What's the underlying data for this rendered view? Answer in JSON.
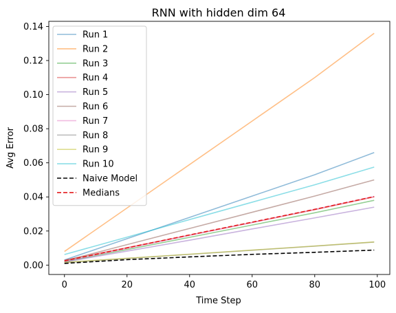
{
  "chart_data": {
    "type": "line",
    "title": "RNN with hidden dim 64",
    "xlabel": "Time Step",
    "ylabel": "Avg Error",
    "xlim": [
      -5,
      104
    ],
    "ylim": [
      -0.0055,
      0.143
    ],
    "xticks": [
      0,
      20,
      40,
      60,
      80,
      100
    ],
    "xtick_labels": [
      "0",
      "20",
      "40",
      "60",
      "80",
      "100"
    ],
    "yticks": [
      0.0,
      0.02,
      0.04,
      0.06,
      0.08,
      0.1,
      0.12,
      0.14
    ],
    "ytick_labels": [
      "0.00",
      "0.02",
      "0.04",
      "0.06",
      "0.08",
      "0.10",
      "0.12",
      "0.14"
    ],
    "grid": false,
    "legend_position": "upper left",
    "x": [
      0,
      20,
      40,
      60,
      80,
      99
    ],
    "series": [
      {
        "name": "Run 1",
        "color": "#1f77b4",
        "alpha": 0.5,
        "dash": "solid",
        "values": [
          0.003,
          0.0155,
          0.028,
          0.0405,
          0.053,
          0.066
        ]
      },
      {
        "name": "Run 2",
        "color": "#ff7f0e",
        "alpha": 0.5,
        "dash": "solid",
        "values": [
          0.008,
          0.0335,
          0.059,
          0.0845,
          0.11,
          0.136
        ]
      },
      {
        "name": "Run 3",
        "color": "#2ca02c",
        "alpha": 0.5,
        "dash": "solid",
        "values": [
          0.002,
          0.0091,
          0.0163,
          0.0235,
          0.0307,
          0.038
        ]
      },
      {
        "name": "Run 4",
        "color": "#d62728",
        "alpha": 0.5,
        "dash": "solid",
        "values": [
          0.0028,
          0.0102,
          0.0176,
          0.025,
          0.0325,
          0.04
        ]
      },
      {
        "name": "Run 5",
        "color": "#9467bd",
        "alpha": 0.5,
        "dash": "solid",
        "values": [
          0.0018,
          0.0082,
          0.0146,
          0.0212,
          0.0277,
          0.034
        ]
      },
      {
        "name": "Run 6",
        "color": "#8c564b",
        "alpha": 0.5,
        "dash": "solid",
        "values": [
          0.0025,
          0.012,
          0.0215,
          0.031,
          0.0405,
          0.05
        ]
      },
      {
        "name": "Run 7",
        "color": "#e377c2",
        "alpha": 0.5,
        "dash": "solid",
        "values": [
          0.0022,
          0.0098,
          0.0174,
          0.025,
          0.0327,
          0.0403
        ]
      },
      {
        "name": "Run 8",
        "color": "#7f7f7f",
        "alpha": 0.5,
        "dash": "solid",
        "values": [
          0.0015,
          0.0039,
          0.0063,
          0.0087,
          0.0111,
          0.0135
        ]
      },
      {
        "name": "Run 9",
        "color": "#bcbd22",
        "alpha": 0.5,
        "dash": "solid",
        "values": [
          0.0016,
          0.004,
          0.0064,
          0.0088,
          0.0112,
          0.0136
        ]
      },
      {
        "name": "Run 10",
        "color": "#17becf",
        "alpha": 0.5,
        "dash": "solid",
        "values": [
          0.0062,
          0.0164,
          0.0267,
          0.0369,
          0.0471,
          0.0575
        ]
      },
      {
        "name": "Naive Model",
        "color": "#000000",
        "alpha": 1,
        "dash": "dashed",
        "values": [
          0.001,
          0.0032,
          0.0048,
          0.0063,
          0.0075,
          0.0088
        ]
      },
      {
        "name": "Medians",
        "color": "#e41a1c",
        "alpha": 1,
        "dash": "dashed",
        "values": [
          0.0025,
          0.0101,
          0.0177,
          0.0252,
          0.0327,
          0.0402
        ]
      }
    ]
  }
}
